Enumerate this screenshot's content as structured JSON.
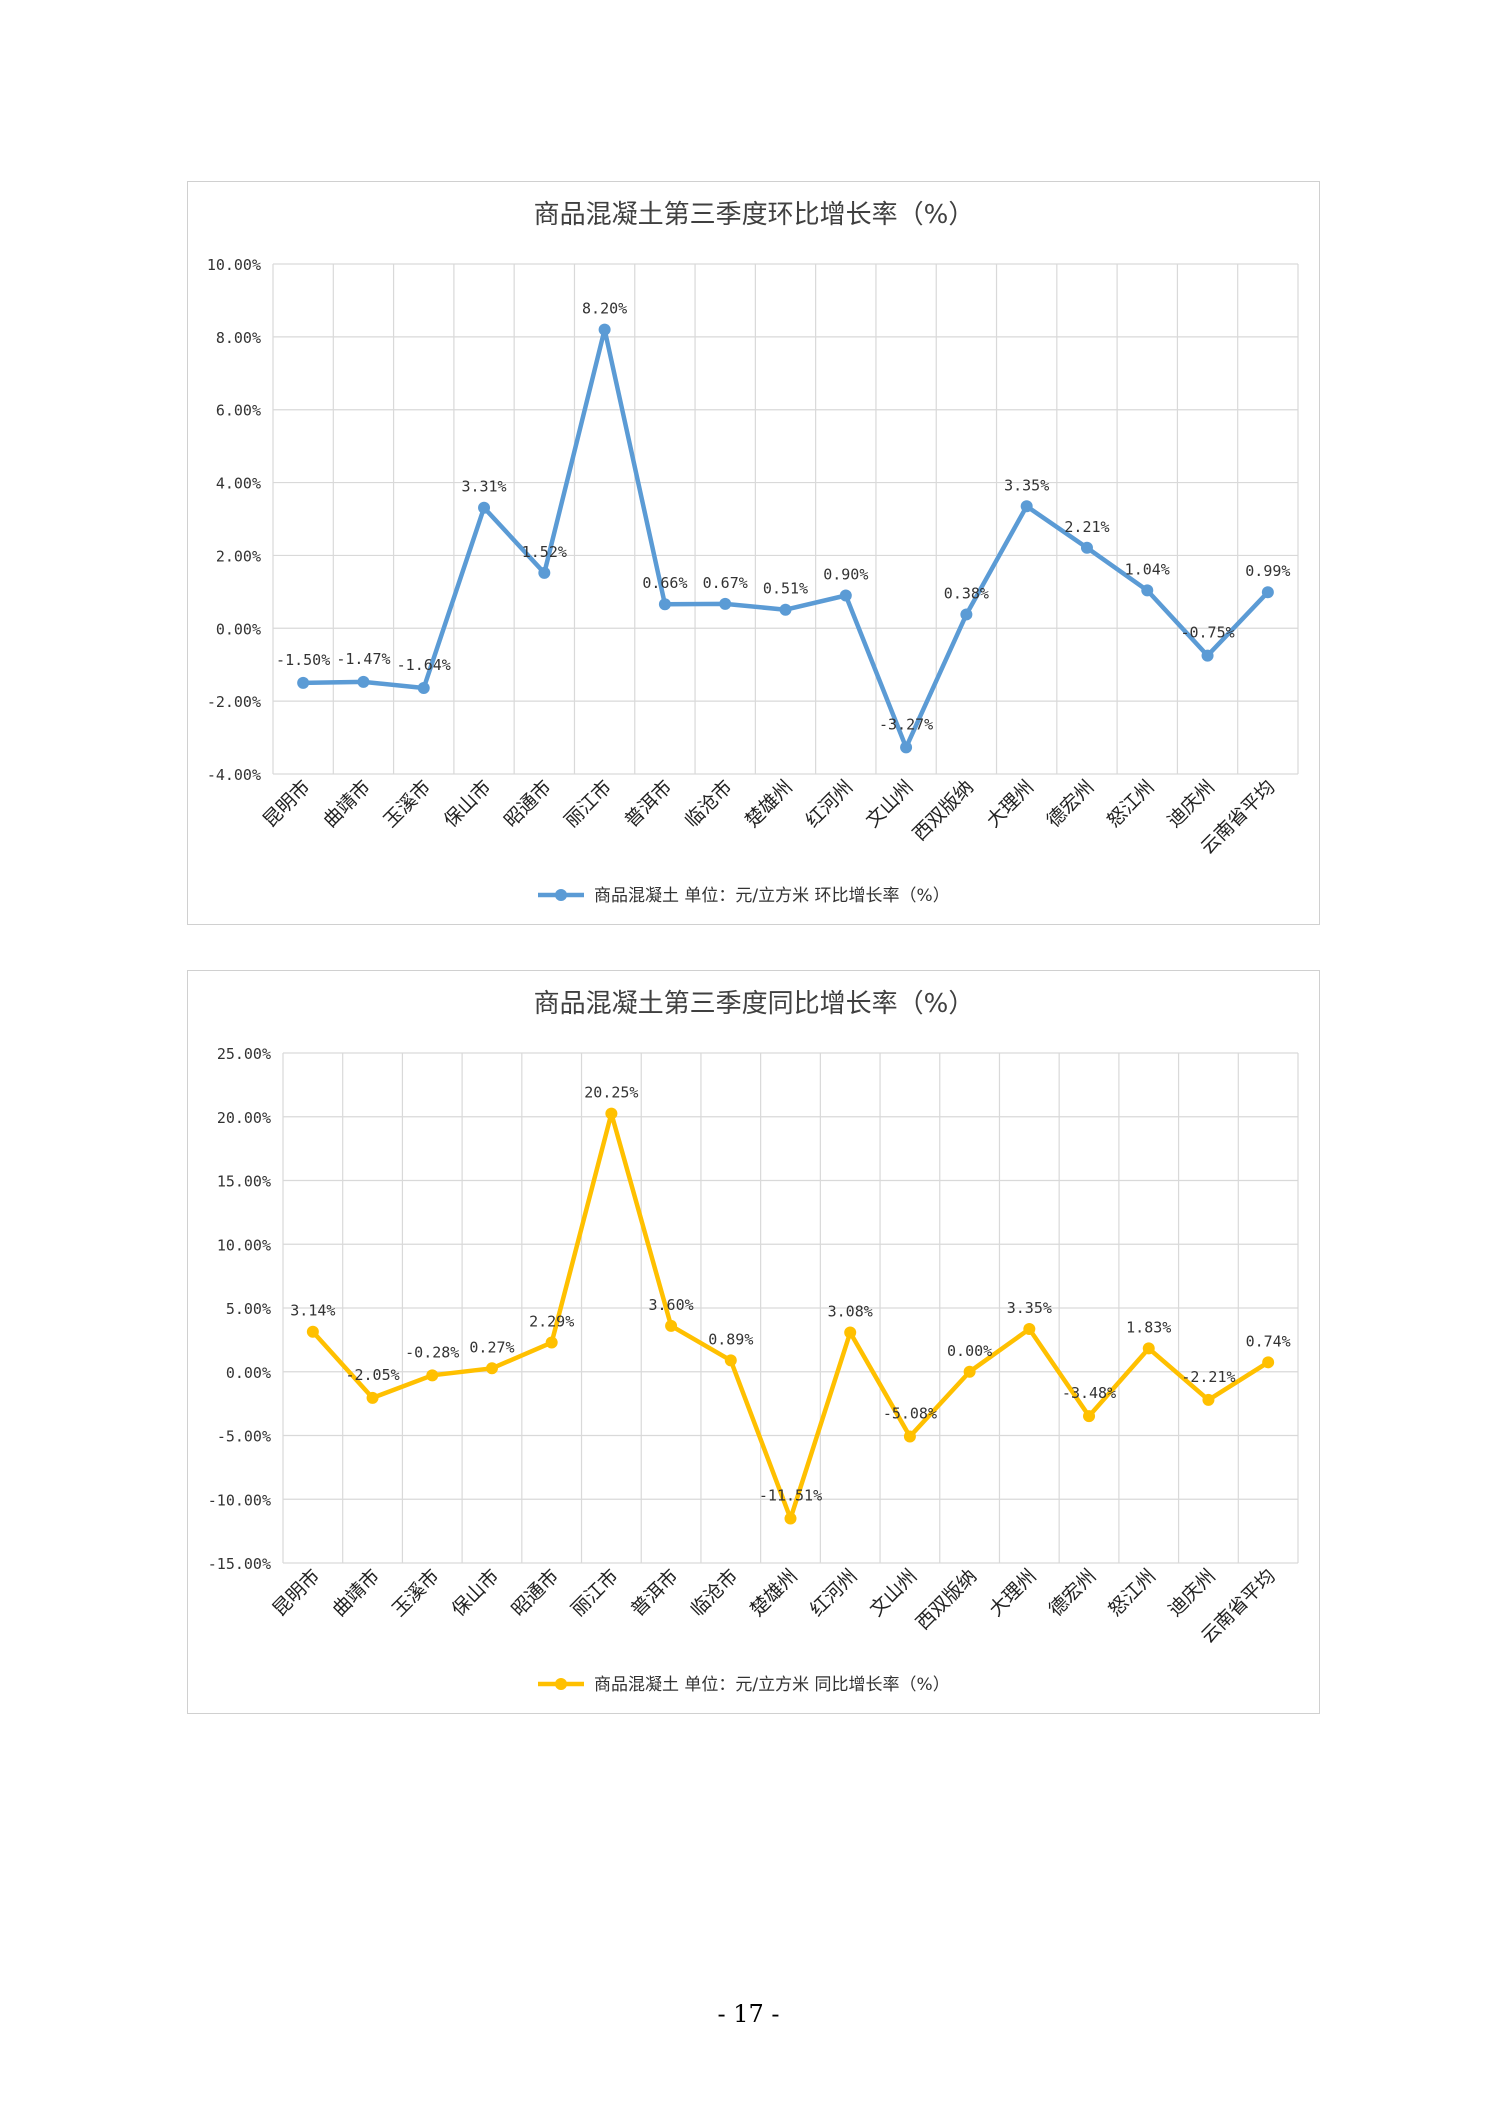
{
  "chart_data": [
    {
      "type": "line",
      "title": "商品混凝土第三季度环比增长率（%）",
      "categories": [
        "昆明市",
        "曲靖市",
        "玉溪市",
        "保山市",
        "昭通市",
        "丽江市",
        "普洱市",
        "临沧市",
        "楚雄州",
        "红河州",
        "文山州",
        "西双版纳",
        "大理州",
        "德宏州",
        "怒江州",
        "迪庆州",
        "云南省平均"
      ],
      "series": [
        {
          "name": "商品混凝土 单位：元/立方米 环比增长率（%）",
          "values": [
            -1.5,
            -1.47,
            -1.64,
            3.31,
            1.52,
            8.2,
            0.66,
            0.67,
            0.51,
            0.9,
            -3.27,
            0.38,
            3.35,
            2.21,
            1.04,
            -0.75,
            0.99
          ],
          "labels": [
            "-1.50%",
            "-1.47%",
            "-1.64%",
            "3.31%",
            "1.52%",
            "8.20%",
            "0.66%",
            "0.67%",
            "0.51%",
            "0.90%",
            "-3.27%",
            "0.38%",
            "3.35%",
            "2.21%",
            "1.04%",
            "-0.75%",
            "0.99%"
          ]
        }
      ],
      "ylim": [
        -4,
        10
      ],
      "yticks": [
        10,
        8,
        6,
        4,
        2,
        0,
        -2,
        -4
      ],
      "ytick_labels": [
        "10.00%",
        "8.00%",
        "6.00%",
        "4.00%",
        "2.00%",
        "0.00%",
        "-2.00%",
        "-4.00%"
      ],
      "color": "#5b9bd5",
      "grid": true,
      "legend_position": "bottom"
    },
    {
      "type": "line",
      "title": "商品混凝土第三季度同比增长率（%）",
      "categories": [
        "昆明市",
        "曲靖市",
        "玉溪市",
        "保山市",
        "昭通市",
        "丽江市",
        "普洱市",
        "临沧市",
        "楚雄州",
        "红河州",
        "文山州",
        "西双版纳",
        "大理州",
        "德宏州",
        "怒江州",
        "迪庆州",
        "云南省平均"
      ],
      "series": [
        {
          "name": "商品混凝土 单位：元/立方米 同比增长率（%）",
          "values": [
            3.14,
            -2.05,
            -0.28,
            0.27,
            2.29,
            20.25,
            3.6,
            0.89,
            -11.51,
            3.08,
            -5.08,
            0.0,
            3.35,
            -3.48,
            1.83,
            -2.21,
            0.74
          ],
          "labels": [
            "3.14%",
            "-2.05%",
            "-0.28%",
            "0.27%",
            "2.29%",
            "20.25%",
            "3.60%",
            "0.89%",
            "-11.51%",
            "3.08%",
            "-5.08%",
            "0.00%",
            "3.35%",
            "-3.48%",
            "1.83%",
            "-2.21%",
            "0.74%"
          ]
        }
      ],
      "ylim": [
        -15,
        25
      ],
      "yticks": [
        25,
        20,
        15,
        10,
        5,
        0,
        -5,
        -10,
        -15
      ],
      "ytick_labels": [
        "25.00%",
        "20.00%",
        "15.00%",
        "10.00%",
        "5.00%",
        "0.00%",
        "-5.00%",
        "-10.00%",
        "-15.00%"
      ],
      "color": "#ffc000",
      "grid": true,
      "legend_position": "bottom"
    }
  ],
  "page": {
    "number": "- 17 -"
  }
}
